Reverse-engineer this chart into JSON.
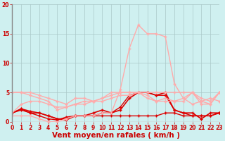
{
  "background_color": "#cff0f0",
  "grid_color": "#aac8c8",
  "xlabel": "Vent moyen/en rafales ( km/h )",
  "xlim": [
    0,
    23
  ],
  "ylim": [
    0,
    20
  ],
  "yticks": [
    0,
    5,
    10,
    15,
    20
  ],
  "xticks": [
    0,
    1,
    2,
    3,
    4,
    5,
    6,
    7,
    8,
    9,
    10,
    11,
    12,
    13,
    14,
    15,
    16,
    17,
    18,
    19,
    20,
    21,
    22,
    23
  ],
  "series": [
    {
      "x": [
        0,
        1,
        2,
        3,
        4,
        5,
        6,
        7,
        8,
        9,
        10,
        11,
        12,
        13,
        14,
        15,
        16,
        17,
        18,
        19,
        20,
        21,
        22,
        23
      ],
      "y": [
        1.5,
        2.2,
        1.8,
        1.5,
        1.0,
        0.5,
        0.5,
        1.0,
        1.0,
        1.0,
        1.0,
        1.0,
        1.0,
        1.0,
        1.0,
        1.0,
        1.0,
        1.5,
        1.5,
        1.0,
        1.0,
        1.0,
        1.0,
        1.5
      ],
      "color": "#dd0000",
      "lw": 1.0,
      "marker": "+",
      "ms": 3.0
    },
    {
      "x": [
        0,
        1,
        2,
        3,
        4,
        5,
        6,
        7,
        8,
        9,
        10,
        11,
        12,
        13,
        14,
        15,
        16,
        17,
        18,
        19,
        20,
        21,
        22,
        23
      ],
      "y": [
        1.5,
        2.0,
        1.5,
        1.0,
        0.5,
        0.3,
        0.8,
        1.0,
        1.0,
        1.0,
        1.5,
        1.5,
        2.5,
        4.5,
        5.0,
        5.0,
        4.5,
        4.5,
        2.0,
        1.5,
        1.0,
        1.0,
        1.0,
        1.5
      ],
      "color": "#dd0000",
      "lw": 1.0,
      "marker": "+",
      "ms": 3.0
    },
    {
      "x": [
        0,
        1,
        2,
        3,
        4,
        5,
        6,
        7,
        8,
        9,
        10,
        11,
        12,
        13,
        14,
        15,
        16,
        17,
        18,
        19,
        20,
        21,
        22,
        23
      ],
      "y": [
        1.5,
        2.2,
        1.5,
        1.5,
        1.0,
        0.5,
        0.3,
        1.0,
        1.0,
        1.5,
        2.0,
        1.5,
        2.0,
        4.0,
        5.0,
        5.0,
        4.5,
        5.0,
        2.0,
        1.5,
        1.5,
        0.5,
        1.5,
        1.5
      ],
      "color": "#dd0000",
      "lw": 1.2,
      "marker": "+",
      "ms": 3.0
    },
    {
      "x": [
        0,
        1,
        2,
        3,
        4,
        5,
        6,
        7,
        8,
        9,
        10,
        11,
        12,
        13,
        14,
        15,
        16,
        17,
        18,
        19,
        20,
        21,
        22,
        23
      ],
      "y": [
        1.0,
        1.0,
        1.0,
        0.5,
        0.0,
        0.0,
        0.5,
        1.0,
        1.0,
        1.0,
        1.5,
        1.5,
        5.5,
        12.5,
        16.5,
        15.0,
        15.0,
        14.5,
        6.5,
        4.0,
        3.0,
        3.5,
        4.0,
        3.5
      ],
      "color": "#ffaaaa",
      "lw": 1.0,
      "marker": "+",
      "ms": 3.0
    },
    {
      "x": [
        0,
        1,
        2,
        3,
        4,
        5,
        6,
        7,
        8,
        9,
        10,
        11,
        12,
        13,
        14,
        15,
        16,
        17,
        18,
        19,
        20,
        21,
        22,
        23
      ],
      "y": [
        5.0,
        5.0,
        4.5,
        4.0,
        3.5,
        2.0,
        2.5,
        3.0,
        3.5,
        3.5,
        4.0,
        4.5,
        5.0,
        5.0,
        5.0,
        4.0,
        3.5,
        3.5,
        3.5,
        4.0,
        5.0,
        4.0,
        3.5,
        5.0
      ],
      "color": "#ffaaaa",
      "lw": 1.0,
      "marker": "+",
      "ms": 3.0
    },
    {
      "x": [
        0,
        1,
        2,
        3,
        4,
        5,
        6,
        7,
        8,
        9,
        10,
        11,
        12,
        13,
        14,
        15,
        16,
        17,
        18,
        19,
        20,
        21,
        22,
        23
      ],
      "y": [
        5.0,
        5.0,
        5.0,
        4.5,
        4.0,
        3.5,
        3.0,
        4.0,
        4.0,
        3.5,
        4.0,
        5.0,
        5.0,
        5.0,
        5.0,
        4.5,
        3.5,
        4.0,
        3.5,
        3.5,
        5.0,
        3.5,
        3.0,
        5.0
      ],
      "color": "#ffaaaa",
      "lw": 1.0,
      "marker": "+",
      "ms": 3.0
    },
    {
      "x": [
        0,
        1,
        2,
        3,
        4,
        5,
        6,
        7,
        8,
        9,
        10,
        11,
        12,
        13,
        14,
        15,
        16,
        17,
        18,
        19,
        20,
        21,
        22,
        23
      ],
      "y": [
        1.5,
        3.0,
        3.5,
        3.5,
        3.0,
        2.5,
        2.5,
        3.0,
        3.0,
        3.5,
        3.5,
        4.0,
        4.5,
        4.5,
        5.0,
        5.0,
        5.0,
        5.0,
        5.0,
        5.0,
        5.0,
        3.0,
        3.0,
        5.0
      ],
      "color": "#ffaaaa",
      "lw": 1.0,
      "marker": "+",
      "ms": 3.0
    }
  ],
  "tick_color": "#cc0000",
  "label_color": "#cc0000",
  "tick_fontsize": 5.5,
  "xlabel_fontsize": 7.5,
  "spine_color": "#888888"
}
